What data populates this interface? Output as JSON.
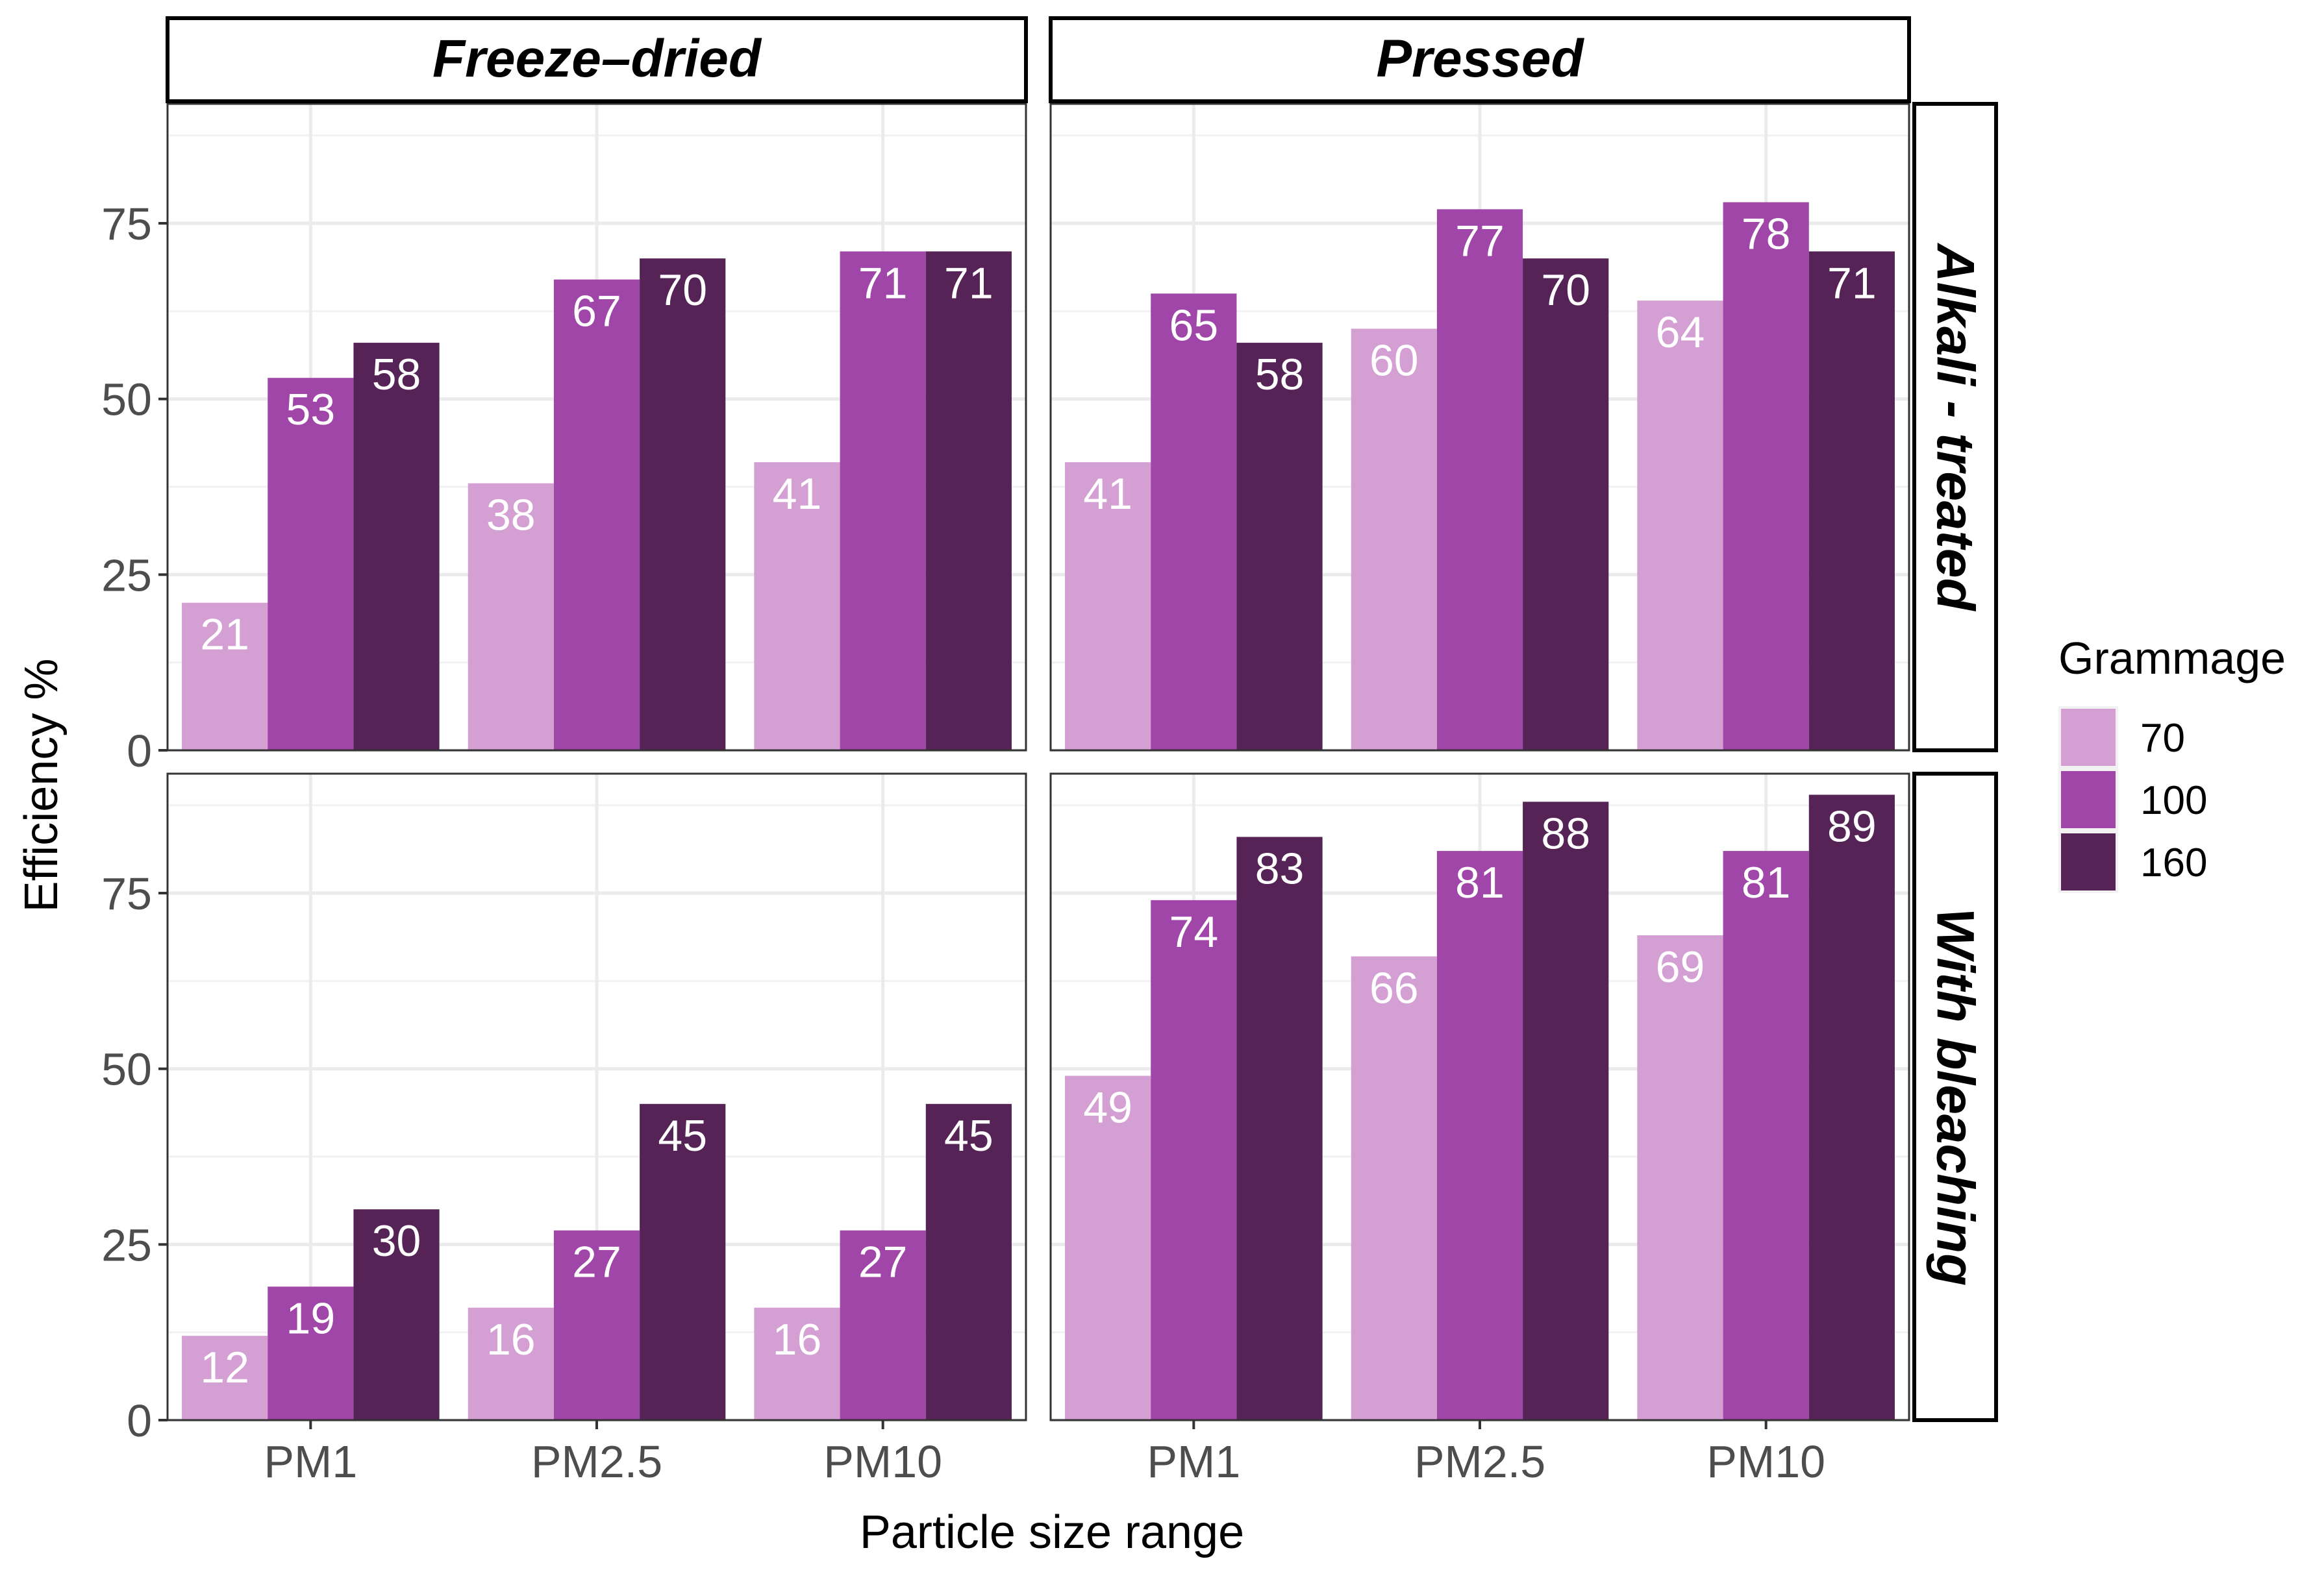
{
  "chart_data": {
    "type": "bar",
    "facet_columns": [
      "Freeze–dried",
      "Pressed"
    ],
    "facet_rows": [
      "Alkali - treated",
      "With bleaching"
    ],
    "categories": [
      "PM1",
      "PM2.5",
      "PM10"
    ],
    "xlabel": "Particle size range",
    "ylabel": "Efficiency %",
    "ylim": [
      0,
      92
    ],
    "yticks": [
      0,
      25,
      50,
      75
    ],
    "legend": {
      "title": "Grammage",
      "position": "right",
      "entries": [
        "70",
        "100",
        "160"
      ]
    },
    "series_colors": [
      "#d4a0d4",
      "#a046a8",
      "#552356"
    ],
    "panels": [
      {
        "row": "Alkali - treated",
        "col": "Freeze–dried",
        "series": [
          {
            "name": "70",
            "values": [
              21,
              38,
              41
            ]
          },
          {
            "name": "100",
            "values": [
              53,
              67,
              71
            ]
          },
          {
            "name": "160",
            "values": [
              58,
              70,
              71
            ]
          }
        ]
      },
      {
        "row": "Alkali - treated",
        "col": "Pressed",
        "series": [
          {
            "name": "70",
            "values": [
              41,
              60,
              64
            ]
          },
          {
            "name": "100",
            "values": [
              65,
              77,
              78
            ]
          },
          {
            "name": "160",
            "values": [
              58,
              70,
              71
            ]
          }
        ]
      },
      {
        "row": "With bleaching",
        "col": "Freeze–dried",
        "series": [
          {
            "name": "70",
            "values": [
              12,
              16,
              16
            ]
          },
          {
            "name": "100",
            "values": [
              19,
              27,
              27
            ]
          },
          {
            "name": "160",
            "values": [
              30,
              45,
              45
            ]
          }
        ]
      },
      {
        "row": "With bleaching",
        "col": "Pressed",
        "series": [
          {
            "name": "70",
            "values": [
              49,
              66,
              69
            ]
          },
          {
            "name": "100",
            "values": [
              74,
              81,
              81
            ]
          },
          {
            "name": "160",
            "values": [
              83,
              88,
              89
            ]
          }
        ]
      }
    ]
  }
}
